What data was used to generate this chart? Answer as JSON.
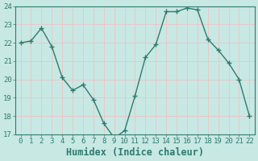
{
  "x": [
    0,
    1,
    2,
    3,
    4,
    5,
    6,
    7,
    8,
    9,
    10,
    11,
    12,
    13,
    14,
    15,
    16,
    17,
    18,
    19,
    20,
    21,
    22
  ],
  "y": [
    22,
    22.1,
    22.8,
    21.8,
    20.1,
    19.4,
    19.7,
    18.9,
    17.6,
    16.8,
    17.2,
    19.1,
    21.2,
    21.9,
    23.7,
    23.7,
    23.9,
    23.8,
    22.2,
    21.6,
    20.9,
    20.0,
    18.0
  ],
  "line_color": "#2e7b6e",
  "marker": "+",
  "marker_size": 4,
  "bg_color": "#c8e8e4",
  "grid_color": "#e8c8c8",
  "xlabel": "Humidex (Indice chaleur)",
  "ylabel": "",
  "ylim": [
    17,
    24
  ],
  "xlim": [
    -0.5,
    22.5
  ],
  "yticks": [
    17,
    18,
    19,
    20,
    21,
    22,
    23,
    24
  ],
  "xticks": [
    0,
    1,
    2,
    3,
    4,
    5,
    6,
    7,
    8,
    9,
    10,
    11,
    12,
    13,
    14,
    15,
    16,
    17,
    18,
    19,
    20,
    21,
    22
  ],
  "tick_fontsize": 6.5,
  "xlabel_fontsize": 8.5,
  "label_color": "#2e7b6e"
}
